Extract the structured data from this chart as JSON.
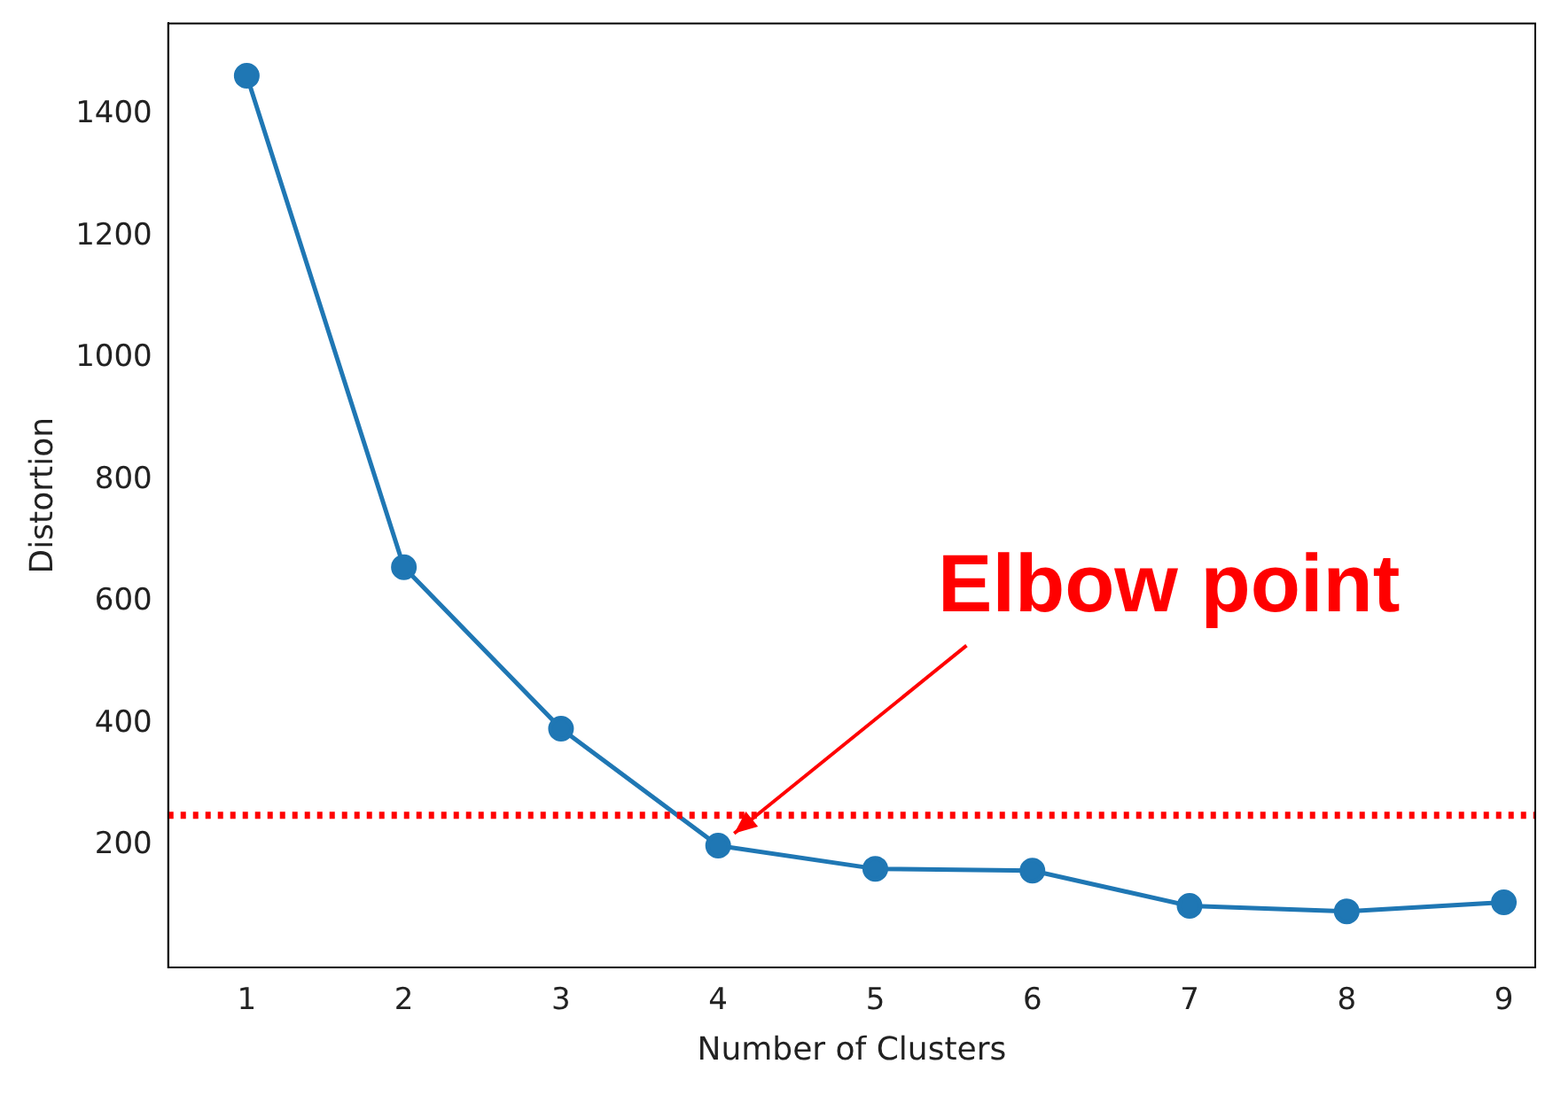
{
  "chart_data": {
    "type": "line",
    "xlabel": "Number of Clusters",
    "ylabel": "Distortion",
    "x": [
      1,
      2,
      3,
      4,
      5,
      6,
      7,
      8,
      9
    ],
    "series": [
      {
        "color": "#1f77b4",
        "values": [
          1464,
          657,
          392,
          200,
          162,
          159,
          101,
          92,
          107
        ]
      }
    ],
    "xlim": [
      0.5,
      9.2
    ],
    "xticks": [
      1,
      2,
      3,
      4,
      5,
      6,
      7,
      8,
      9
    ],
    "ylim": [
      0,
      1550
    ],
    "yticks": [
      200,
      400,
      600,
      800,
      1000,
      1200,
      1400
    ],
    "grid": false,
    "legend": false,
    "marker": "circle",
    "line_style": "solid",
    "ref_lines": [
      {
        "axis": "y",
        "value": 250,
        "color": "#ff0000",
        "line_style": "dotted"
      }
    ],
    "annotations": [
      "Elbow point"
    ]
  }
}
